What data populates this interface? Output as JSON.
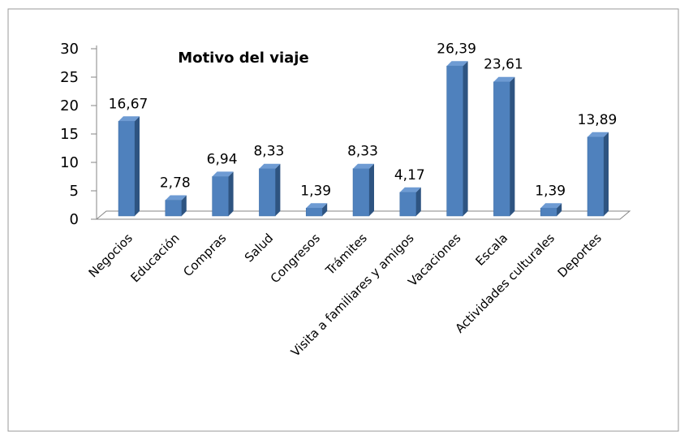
{
  "chart_data": {
    "type": "bar",
    "title": "Motivo del viaje",
    "xlabel": "",
    "ylabel": "",
    "categories": [
      "Negocios",
      "Educación",
      "Compras",
      "Salud",
      "Congresos",
      "Trámites",
      "Visita a familiares y amigos",
      "Vacaciones",
      "Escala",
      "Actividades culturales",
      "Deportes"
    ],
    "values": [
      16.67,
      2.78,
      6.94,
      8.33,
      1.39,
      8.33,
      4.17,
      26.39,
      23.61,
      1.39,
      13.89
    ],
    "data_labels": [
      "16,67",
      "2,78",
      "6,94",
      "8,33",
      "1,39",
      "8,33",
      "4,17",
      "26,39",
      "23,61",
      "1,39",
      "13,89"
    ],
    "yticks": [
      "0",
      "5",
      "10",
      "15",
      "20",
      "25",
      "30"
    ],
    "ylim": [
      0,
      30
    ],
    "grid": false,
    "legend": "none",
    "bar_color": "#4F81BD",
    "bar_side_color": "#2E5481",
    "bar_top_color": "#6E9BD3"
  }
}
